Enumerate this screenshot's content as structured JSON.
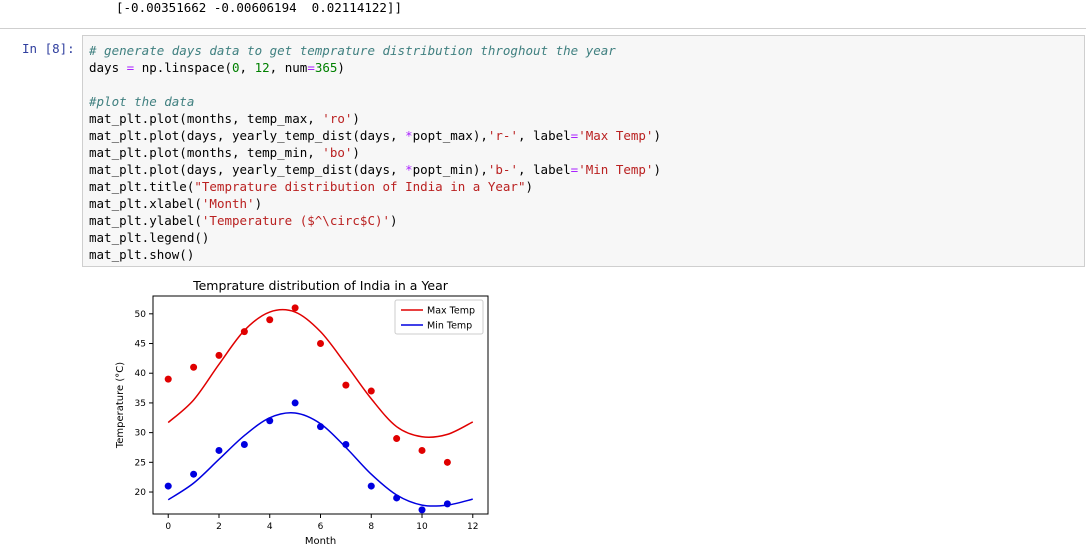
{
  "output_prev": {
    "text": "[-0.00351662 -0.00606194  0.02114122]]"
  },
  "cell": {
    "prompt": "In [8]:",
    "lines": [
      [
        {
          "t": "cm",
          "v": "# generate days data to get temprature distribution throghout the year"
        }
      ],
      [
        {
          "t": "txt",
          "v": "days "
        },
        {
          "t": "op",
          "v": "="
        },
        {
          "t": "txt",
          "v": " np.linspace("
        },
        {
          "t": "num",
          "v": "0"
        },
        {
          "t": "txt",
          "v": ", "
        },
        {
          "t": "num",
          "v": "12"
        },
        {
          "t": "txt",
          "v": ", num"
        },
        {
          "t": "op",
          "v": "="
        },
        {
          "t": "num",
          "v": "365"
        },
        {
          "t": "txt",
          "v": ")"
        }
      ],
      [],
      [
        {
          "t": "cm",
          "v": "#plot the data"
        }
      ],
      [
        {
          "t": "txt",
          "v": "mat_plt.plot(months, temp_max, "
        },
        {
          "t": "str",
          "v": "'ro'"
        },
        {
          "t": "txt",
          "v": ")"
        }
      ],
      [
        {
          "t": "txt",
          "v": "mat_plt.plot(days, yearly_temp_dist(days, "
        },
        {
          "t": "op",
          "v": "*"
        },
        {
          "t": "txt",
          "v": "popt_max),"
        },
        {
          "t": "str",
          "v": "'r-'"
        },
        {
          "t": "txt",
          "v": ", label"
        },
        {
          "t": "op",
          "v": "="
        },
        {
          "t": "str",
          "v": "'Max Temp'"
        },
        {
          "t": "txt",
          "v": ")"
        }
      ],
      [
        {
          "t": "txt",
          "v": "mat_plt.plot(months, temp_min, "
        },
        {
          "t": "str",
          "v": "'bo'"
        },
        {
          "t": "txt",
          "v": ")"
        }
      ],
      [
        {
          "t": "txt",
          "v": "mat_plt.plot(days, yearly_temp_dist(days, "
        },
        {
          "t": "op",
          "v": "*"
        },
        {
          "t": "txt",
          "v": "popt_min),"
        },
        {
          "t": "str",
          "v": "'b-'"
        },
        {
          "t": "txt",
          "v": ", label"
        },
        {
          "t": "op",
          "v": "="
        },
        {
          "t": "str",
          "v": "'Min Temp'"
        },
        {
          "t": "txt",
          "v": ")"
        }
      ],
      [
        {
          "t": "txt",
          "v": "mat_plt.title("
        },
        {
          "t": "str",
          "v": "\"Temprature distribution of India in a Year\""
        },
        {
          "t": "txt",
          "v": ")"
        }
      ],
      [
        {
          "t": "txt",
          "v": "mat_plt.xlabel("
        },
        {
          "t": "str",
          "v": "'Month'"
        },
        {
          "t": "txt",
          "v": ")"
        }
      ],
      [
        {
          "t": "txt",
          "v": "mat_plt.ylabel("
        },
        {
          "t": "str",
          "v": "'Temperature ($^\\circ$C)'"
        },
        {
          "t": "txt",
          "v": ")"
        }
      ],
      [
        {
          "t": "txt",
          "v": "mat_plt.legend()"
        }
      ],
      [
        {
          "t": "txt",
          "v": "mat_plt.show()"
        }
      ]
    ]
  },
  "colors": {
    "max": "#e00000",
    "min": "#0000e0"
  },
  "chart_data": {
    "type": "line",
    "title": "Temprature distribution of India in a Year",
    "xlabel": "Month",
    "ylabel": "Temperature (°C)",
    "xlim": [
      -0.6,
      12.6
    ],
    "ylim": [
      16.3,
      53
    ],
    "xticks": [
      0,
      2,
      4,
      6,
      8,
      10,
      12
    ],
    "yticks": [
      20,
      25,
      30,
      35,
      40,
      45,
      50
    ],
    "legend_position": "top-right",
    "series": [
      {
        "name": "Max Temp",
        "marker_x": [
          0,
          1,
          2,
          3,
          4,
          5,
          6,
          7,
          8,
          9,
          10,
          11
        ],
        "marker_y": [
          39,
          41,
          43,
          47,
          49,
          51,
          45,
          38,
          37,
          29,
          27,
          25
        ],
        "curve_x": [
          0,
          1,
          2,
          3,
          4,
          5,
          6,
          7,
          8,
          9,
          10,
          11,
          12
        ],
        "curve_y": [
          31.7,
          35.5,
          41.5,
          47.2,
          50.3,
          50.3,
          47.0,
          41.5,
          35.7,
          31.0,
          29.3,
          29.7,
          31.8
        ]
      },
      {
        "name": "Min Temp",
        "marker_x": [
          0,
          1,
          2,
          3,
          4,
          5,
          6,
          7,
          8,
          9,
          10,
          11
        ],
        "marker_y": [
          21,
          23,
          27,
          28,
          32,
          35,
          31,
          28,
          21,
          19,
          17,
          18
        ],
        "curve_x": [
          0,
          1,
          2,
          3,
          4,
          5,
          6,
          7,
          8,
          9,
          10,
          11,
          12
        ],
        "curve_y": [
          18.7,
          21.5,
          25.5,
          29.5,
          32.5,
          33.3,
          31.5,
          27.5,
          23.0,
          19.5,
          17.8,
          17.8,
          18.8
        ]
      }
    ]
  }
}
